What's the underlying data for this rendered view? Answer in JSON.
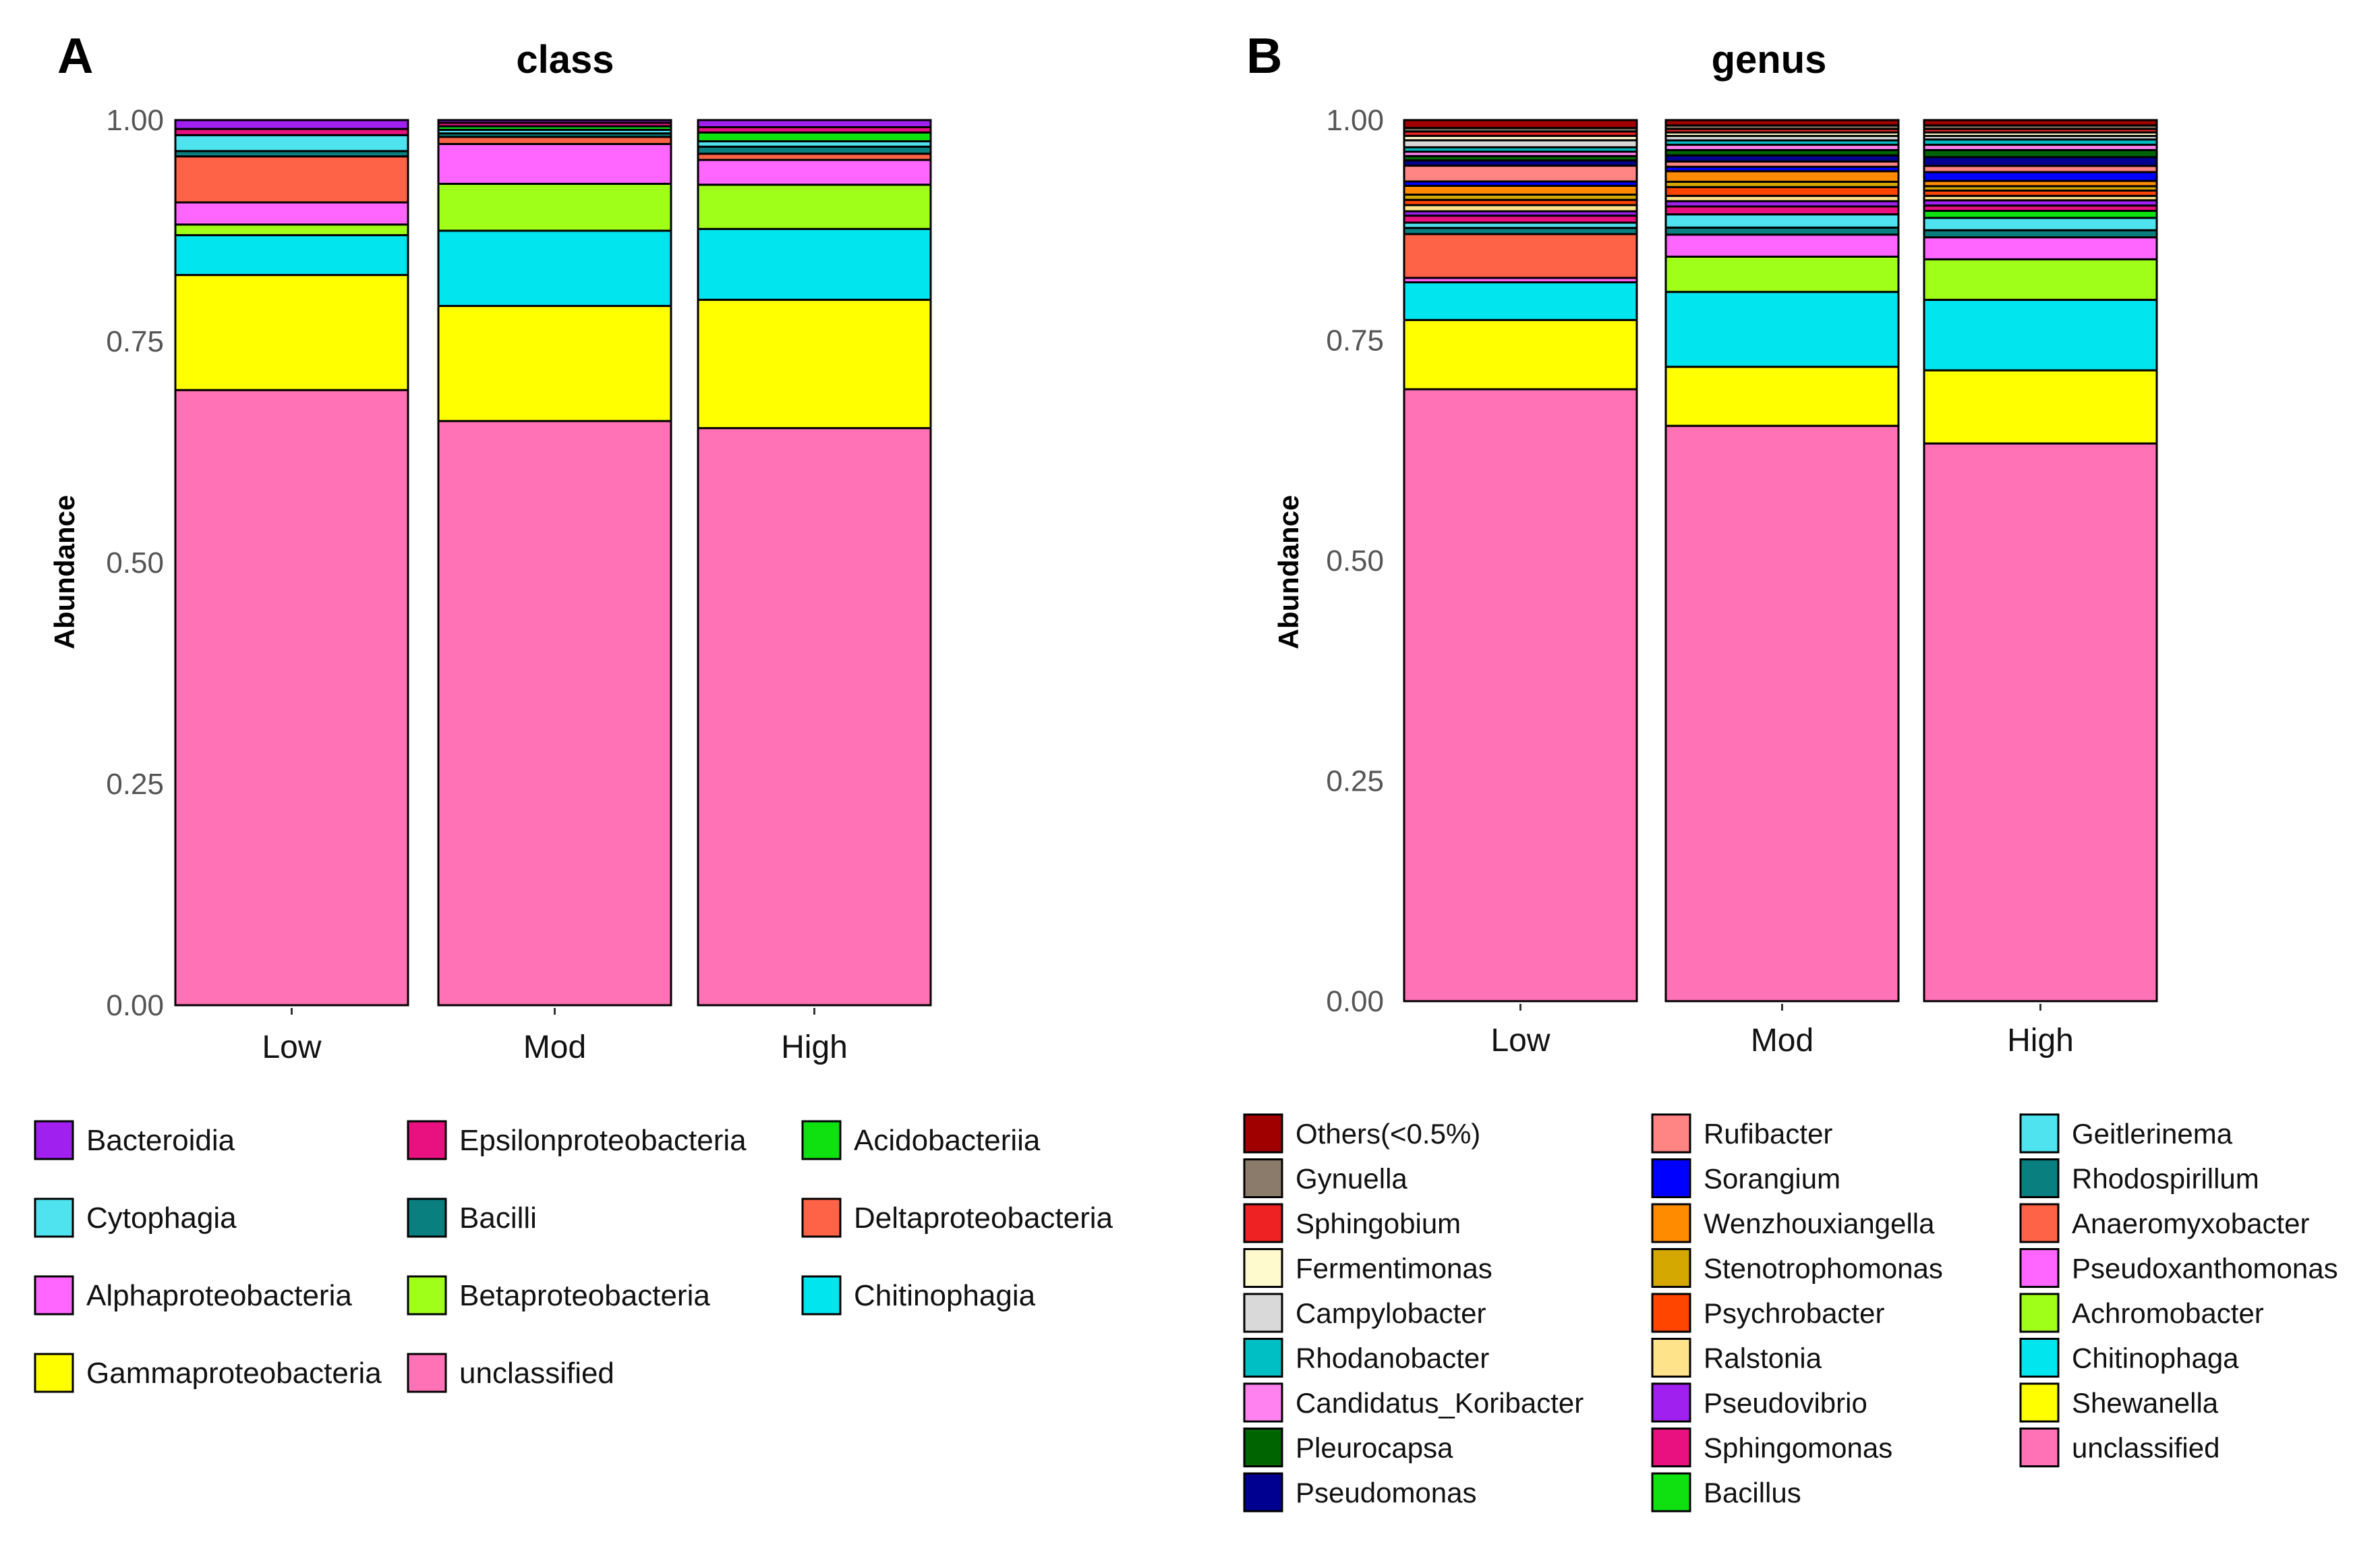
{
  "panels": [
    {
      "letter": "A",
      "title": "class",
      "ylabel": "Abundance",
      "yticks": [
        "0.00",
        "0.25",
        "0.50",
        "0.75",
        "1.00"
      ],
      "categories": [
        "Low",
        "Mod",
        "High"
      ],
      "legend": [
        {
          "label": "Bacteroidia",
          "color": "#A020F0"
        },
        {
          "label": "Cytophagia",
          "color": "#4FE3F0"
        },
        {
          "label": "Alphaproteobacteria",
          "color": "#FF66FF"
        },
        {
          "label": "Gammaproteobacteria",
          "color": "#FFFF00"
        },
        {
          "label": "Epsilonproteobacteria",
          "color": "#E8117F"
        },
        {
          "label": "Bacilli",
          "color": "#0A7F7F"
        },
        {
          "label": "Betaproteobacteria",
          "color": "#A0FF19"
        },
        {
          "label": "unclassified",
          "color": "#FF72B6"
        },
        {
          "label": "Acidobacteriia",
          "color": "#0FE00F"
        },
        {
          "label": "Deltaproteobacteria",
          "color": "#FF6347"
        },
        {
          "label": "Chitinophagia",
          "color": "#00E5EE"
        }
      ]
    },
    {
      "letter": "B",
      "title": "genus",
      "ylabel": "Abundance",
      "yticks": [
        "0.00",
        "0.25",
        "0.50",
        "0.75",
        "1.00"
      ],
      "categories": [
        "Low",
        "Mod",
        "High"
      ],
      "legend": [
        {
          "label": "Others(<0.5%)",
          "color": "#A00000"
        },
        {
          "label": "Gynuella",
          "color": "#8B7B6B"
        },
        {
          "label": "Sphingobium",
          "color": "#EE2222"
        },
        {
          "label": "Fermentimonas",
          "color": "#FFFACD"
        },
        {
          "label": "Campylobacter",
          "color": "#D9D9D9"
        },
        {
          "label": "Rhodanobacter",
          "color": "#00BFC4"
        },
        {
          "label": "Candidatus_Koribacter",
          "color": "#FF82F0"
        },
        {
          "label": "Pleurocapsa",
          "color": "#006400"
        },
        {
          "label": "Pseudomonas",
          "color": "#000090"
        },
        {
          "label": "Rufibacter",
          "color": "#FF8484"
        },
        {
          "label": "Sorangium",
          "color": "#0000FF"
        },
        {
          "label": "Wenzhouxiangella",
          "color": "#FF8C00"
        },
        {
          "label": "Stenotrophomonas",
          "color": "#D4A800"
        },
        {
          "label": "Psychrobacter",
          "color": "#FF4500"
        },
        {
          "label": "Ralstonia",
          "color": "#FFE38A"
        },
        {
          "label": "Pseudovibrio",
          "color": "#A020F0"
        },
        {
          "label": "Sphingomonas",
          "color": "#E8117F"
        },
        {
          "label": "Bacillus",
          "color": "#0FE00F"
        },
        {
          "label": "Geitlerinema",
          "color": "#4FE3F0"
        },
        {
          "label": "Rhodospirillum",
          "color": "#0A7F7F"
        },
        {
          "label": "Anaeromyxobacter",
          "color": "#FF6347"
        },
        {
          "label": "Pseudoxanthomonas",
          "color": "#FF66FF"
        },
        {
          "label": "Achromobacter",
          "color": "#A0FF19"
        },
        {
          "label": "Chitinophaga",
          "color": "#00E5EE"
        },
        {
          "label": "Shewanella",
          "color": "#FFFF00"
        },
        {
          "label": "unclassified",
          "color": "#FF72B6"
        }
      ]
    }
  ],
  "chart_data": [
    {
      "type": "bar",
      "stacked": true,
      "title": "class",
      "xlabel": "",
      "ylabel": "Abundance",
      "ylim": [
        0,
        1
      ],
      "categories": [
        "Low",
        "Mod",
        "High"
      ],
      "series": [
        {
          "name": "unclassified",
          "color": "#FF72B6",
          "values": [
            0.695,
            0.66,
            0.652
          ]
        },
        {
          "name": "Gammaproteobacteria",
          "color": "#FFFF00",
          "values": [
            0.13,
            0.13,
            0.145
          ]
        },
        {
          "name": "Chitinophagia",
          "color": "#00E5EE",
          "values": [
            0.045,
            0.085,
            0.08
          ]
        },
        {
          "name": "Betaproteobacteria",
          "color": "#A0FF19",
          "values": [
            0.012,
            0.053,
            0.05
          ]
        },
        {
          "name": "Alphaproteobacteria",
          "color": "#FF66FF",
          "values": [
            0.025,
            0.045,
            0.028
          ]
        },
        {
          "name": "Deltaproteobacteria",
          "color": "#FF6347",
          "values": [
            0.052,
            0.008,
            0.007
          ]
        },
        {
          "name": "Bacilli",
          "color": "#0A7F7F",
          "values": [
            0.006,
            0.004,
            0.008
          ]
        },
        {
          "name": "Cytophagia",
          "color": "#4FE3F0",
          "values": [
            0.018,
            0.004,
            0.006
          ]
        },
        {
          "name": "Acidobacteriia",
          "color": "#0FE00F",
          "values": [
            0.0,
            0.004,
            0.01
          ]
        },
        {
          "name": "Epsilonproteobacteria",
          "color": "#E8117F",
          "values": [
            0.007,
            0.004,
            0.006
          ]
        },
        {
          "name": "Bacteroidia",
          "color": "#A020F0",
          "values": [
            0.01,
            0.003,
            0.008
          ]
        }
      ]
    },
    {
      "type": "bar",
      "stacked": true,
      "title": "genus",
      "xlabel": "",
      "ylabel": "Abundance",
      "ylim": [
        0,
        1
      ],
      "categories": [
        "Low",
        "Mod",
        "High"
      ],
      "series": [
        {
          "name": "unclassified",
          "color": "#FF72B6",
          "values": [
            0.698,
            0.653,
            0.633
          ]
        },
        {
          "name": "Shewanella",
          "color": "#FFFF00",
          "values": [
            0.079,
            0.067,
            0.083
          ]
        },
        {
          "name": "Chitinophaga",
          "color": "#00E5EE",
          "values": [
            0.043,
            0.085,
            0.08
          ]
        },
        {
          "name": "Achromobacter",
          "color": "#A0FF19",
          "values": [
            0.0,
            0.04,
            0.046
          ]
        },
        {
          "name": "Pseudoxanthomonas",
          "color": "#FF66FF",
          "values": [
            0.005,
            0.025,
            0.025
          ]
        },
        {
          "name": "Anaeromyxobacter",
          "color": "#FF6347",
          "values": [
            0.05,
            0.0,
            0.0
          ]
        },
        {
          "name": "Rhodospirillum",
          "color": "#0A7F7F",
          "values": [
            0.007,
            0.008,
            0.008
          ]
        },
        {
          "name": "Geitlerinema",
          "color": "#4FE3F0",
          "values": [
            0.006,
            0.015,
            0.014
          ]
        },
        {
          "name": "Bacillus",
          "color": "#0FE00F",
          "values": [
            0.0,
            0.0,
            0.008
          ]
        },
        {
          "name": "Sphingomonas",
          "color": "#E8117F",
          "values": [
            0.008,
            0.009,
            0.006
          ]
        },
        {
          "name": "Pseudovibrio",
          "color": "#A020F0",
          "values": [
            0.005,
            0.006,
            0.006
          ]
        },
        {
          "name": "Ralstonia",
          "color": "#FFE38A",
          "values": [
            0.007,
            0.006,
            0.005
          ]
        },
        {
          "name": "Psychrobacter",
          "color": "#FF4500",
          "values": [
            0.006,
            0.01,
            0.006
          ]
        },
        {
          "name": "Stenotrophomonas",
          "color": "#D4A800",
          "values": [
            0.006,
            0.006,
            0.005
          ]
        },
        {
          "name": "Wenzhouxiangella",
          "color": "#FF8C00",
          "values": [
            0.01,
            0.012,
            0.006
          ]
        },
        {
          "name": "Sorangium",
          "color": "#0000FF",
          "values": [
            0.005,
            0.005,
            0.01
          ]
        },
        {
          "name": "Rufibacter",
          "color": "#FF8484",
          "values": [
            0.018,
            0.006,
            0.007
          ]
        },
        {
          "name": "Pseudomonas",
          "color": "#000090",
          "values": [
            0.006,
            0.007,
            0.01
          ]
        },
        {
          "name": "Pleurocapsa",
          "color": "#006400",
          "values": [
            0.005,
            0.006,
            0.008
          ]
        },
        {
          "name": "Candidatus_Koribacter",
          "color": "#FF82F0",
          "values": [
            0.005,
            0.006,
            0.006
          ]
        },
        {
          "name": "Rhodanobacter",
          "color": "#00BFC4",
          "values": [
            0.005,
            0.005,
            0.006
          ]
        },
        {
          "name": "Campylobacter",
          "color": "#D9D9D9",
          "values": [
            0.008,
            0.005,
            0.004
          ]
        },
        {
          "name": "Fermentimonas",
          "color": "#FFFACD",
          "values": [
            0.005,
            0.004,
            0.004
          ]
        },
        {
          "name": "Sphingobium",
          "color": "#EE2222",
          "values": [
            0.005,
            0.004,
            0.004
          ]
        },
        {
          "name": "Gynuella",
          "color": "#8B7B6B",
          "values": [
            0.004,
            0.004,
            0.004
          ]
        },
        {
          "name": "Others(<0.5%)",
          "color": "#A00000",
          "values": [
            0.009,
            0.006,
            0.006
          ]
        }
      ]
    }
  ]
}
